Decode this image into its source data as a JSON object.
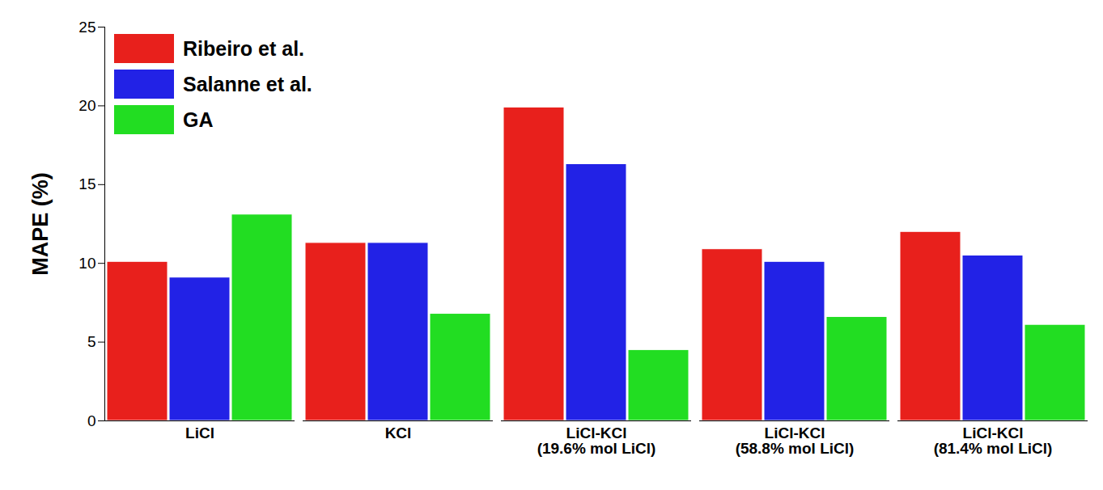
{
  "chart_data": {
    "type": "bar",
    "y_label": "MAPE (%)",
    "categories": [
      "LiCl",
      "KCl",
      "LiCl-KCl\n(19.6% mol LiCl)",
      "LiCl-KCl\n(58.8% mol LiCl)",
      "LiCl-KCl\n(81.4% mol LiCl)"
    ],
    "series": [
      {
        "name": "Ribeiro et al.",
        "color": "#e8201c",
        "values": [
          10.1,
          11.3,
          19.9,
          10.9,
          12.0
        ]
      },
      {
        "name": "Salanne et al.",
        "color": "#2222e6",
        "values": [
          9.1,
          11.3,
          16.3,
          10.1,
          10.5
        ]
      },
      {
        "name": "GA",
        "color": "#22dd22",
        "values": [
          13.1,
          6.8,
          4.5,
          6.6,
          6.1
        ]
      }
    ],
    "ylim": [
      0,
      25
    ],
    "yticks": [
      0,
      5,
      10,
      15,
      20,
      25
    ],
    "legend": "top-left",
    "grid": false
  }
}
